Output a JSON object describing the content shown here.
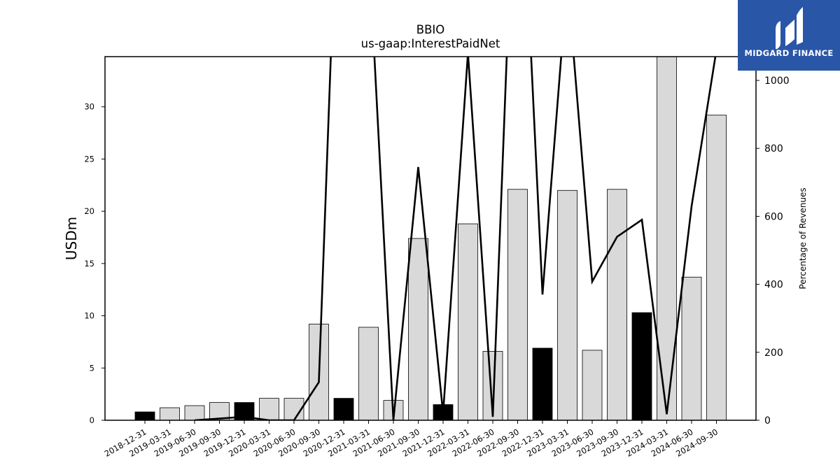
{
  "chart_data": {
    "type": "bar",
    "title": "BBIO",
    "subtitle": "us-gaap:InterestPaidNet",
    "ylabel": "USDm",
    "y2label": "Percentage of Revenues",
    "ylim": [
      0,
      34.8
    ],
    "y2lim": [
      0,
      1070
    ],
    "yticks": [
      0,
      5,
      10,
      15,
      20,
      25,
      30
    ],
    "y2ticks": [
      0,
      200,
      400,
      600,
      800,
      1000
    ],
    "categories": [
      "2018-12-31",
      "2019-03-31",
      "2019-06-30",
      "2019-09-30",
      "2019-12-31",
      "2020-03-31",
      "2020-06-30",
      "2020-09-30",
      "2020-12-31",
      "2021-03-31",
      "2021-06-30",
      "2021-09-30",
      "2021-12-31",
      "2022-03-31",
      "2022-06-30",
      "2022-09-30",
      "2022-12-31",
      "2023-03-31",
      "2023-06-30",
      "2023-09-30",
      "2023-12-31",
      "2024-03-31",
      "2024-06-30",
      "2024-09-30"
    ],
    "series": [
      {
        "values": [
          0.8,
          1.2,
          1.4,
          1.7,
          1.7,
          2.1,
          2.1,
          9.2,
          2.1,
          8.9,
          1.9,
          17.4,
          1.5,
          18.8,
          6.6,
          22.1,
          6.9,
          22.0,
          6.7,
          22.1,
          10.3,
          34.8,
          13.7,
          29.2
        ],
        "highlight": [
          true,
          false,
          false,
          false,
          true,
          false,
          false,
          false,
          true,
          false,
          false,
          false,
          true,
          false,
          false,
          false,
          true,
          false,
          false,
          false,
          true,
          false,
          false,
          false
        ]
      },
      {
        "axis": "right",
        "type": "line",
        "values": [
          null,
          null,
          0,
          5,
          10,
          0,
          0,
          112,
          2100,
          1400,
          0,
          745,
          20,
          1080,
          10,
          1900,
          370,
          1300,
          408,
          540,
          590,
          18,
          630,
          1090
        ]
      }
    ],
    "colors": {
      "bar": "#d9d9d9",
      "bar_highlight": "#000000",
      "line": "#000000"
    }
  },
  "logo": {
    "text": "MIDGARD FINANCE"
  }
}
